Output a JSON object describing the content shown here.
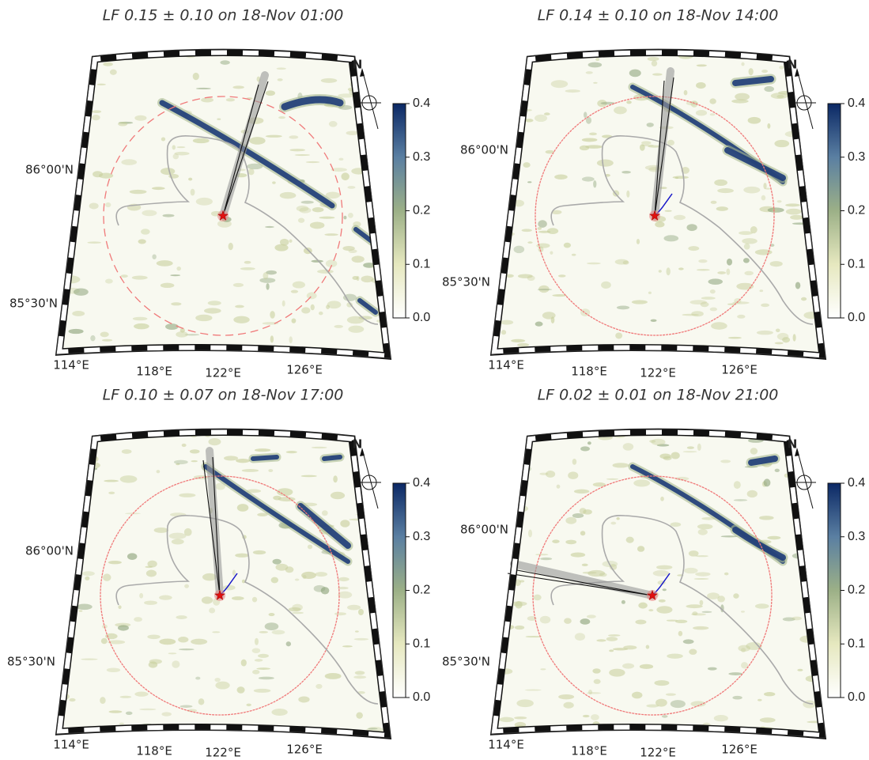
{
  "panels": [
    {
      "title": "LF 0.15 ± 0.10 on 18-Nov 01:00",
      "lat_labels": [
        "86°00'N",
        "85°30'N"
      ],
      "lon_labels": [
        "114°E",
        "118°E",
        "122°E",
        "126°E"
      ]
    },
    {
      "title": "LF 0.14 ± 0.10 on 18-Nov 14:00",
      "lat_labels": [
        "86°00'N",
        "85°30'N"
      ],
      "lon_labels": [
        "114°E",
        "118°E",
        "122°E",
        "126°E"
      ]
    },
    {
      "title": "LF 0.10 ± 0.07 on 18-Nov 17:00",
      "lat_labels": [
        "86°00'N",
        "85°30'N"
      ],
      "lon_labels": [
        "114°E",
        "118°E",
        "122°E",
        "126°E"
      ]
    },
    {
      "title": "LF 0.02 ± 0.01 on 18-Nov 21:00",
      "lat_labels": [
        "86°00'N",
        "85°30'N"
      ],
      "lon_labels": [
        "114°E",
        "118°E",
        "122°E",
        "126°E"
      ]
    }
  ],
  "north_label": "N",
  "colorbar": {
    "lim": [
      0,
      0.4
    ],
    "ticks": [
      {
        "value": 0,
        "label": "0.0"
      },
      0.1,
      0.2,
      0.3,
      0.4
    ]
  }
}
